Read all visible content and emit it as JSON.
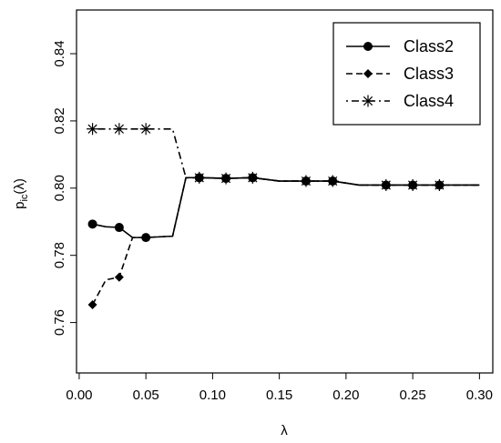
{
  "chart_data": {
    "type": "line",
    "xlabel": "λ",
    "ylabel": {
      "base": "p",
      "sub": "ic",
      "arg": "(λ)"
    },
    "xlim": [
      -0.002,
      0.31
    ],
    "ylim": [
      0.745,
      0.853
    ],
    "x_ticks": [
      0.0,
      0.05,
      0.1,
      0.15,
      0.2,
      0.25,
      0.3
    ],
    "x_tick_labels": [
      "0.00",
      "0.05",
      "0.10",
      "0.15",
      "0.20",
      "0.25",
      "0.30"
    ],
    "y_ticks": [
      0.76,
      0.78,
      0.8,
      0.82,
      0.84
    ],
    "y_tick_labels": [
      "0.76",
      "0.78",
      "0.80",
      "0.82",
      "0.84"
    ],
    "grid": false,
    "legend_position": "top-right",
    "series": [
      {
        "name": "Class2",
        "line_style": "solid",
        "marker": "circle",
        "x": [
          0.01,
          0.02,
          0.03,
          0.04,
          0.05,
          0.07,
          0.08,
          0.09,
          0.11,
          0.13,
          0.15,
          0.17,
          0.19,
          0.21,
          0.23,
          0.25,
          0.27,
          0.3
        ],
        "y": [
          0.7893,
          0.7885,
          0.7883,
          0.7853,
          0.7853,
          0.7857,
          0.8031,
          0.8031,
          0.8029,
          0.8031,
          0.8021,
          0.8021,
          0.8021,
          0.8009,
          0.8009,
          0.8009,
          0.8009,
          0.8009
        ],
        "marker_x": [
          0.01,
          0.03,
          0.05,
          0.09,
          0.11,
          0.13,
          0.17,
          0.19,
          0.23,
          0.25,
          0.27
        ]
      },
      {
        "name": "Class3",
        "line_style": "dashed",
        "marker": "diamond",
        "x": [
          0.01,
          0.02,
          0.03,
          0.04,
          0.05,
          0.07,
          0.08,
          0.09,
          0.11,
          0.13,
          0.15,
          0.17,
          0.19,
          0.21,
          0.23,
          0.25,
          0.27,
          0.3
        ],
        "y": [
          0.7653,
          0.7727,
          0.7735,
          0.7853,
          0.7853,
          0.7857,
          0.8031,
          0.8031,
          0.8029,
          0.8031,
          0.8021,
          0.8021,
          0.8021,
          0.8009,
          0.8009,
          0.8009,
          0.8009,
          0.8009
        ],
        "marker_x": [
          0.01,
          0.03,
          0.09,
          0.11,
          0.13,
          0.17,
          0.19,
          0.23,
          0.25,
          0.27
        ]
      },
      {
        "name": "Class4",
        "line_style": "dotdash",
        "marker": "asterisk",
        "x": [
          0.01,
          0.02,
          0.03,
          0.04,
          0.05,
          0.07,
          0.08,
          0.09,
          0.11,
          0.13,
          0.15,
          0.17,
          0.19,
          0.21,
          0.23,
          0.25,
          0.27,
          0.3
        ],
        "y": [
          0.8176,
          0.8176,
          0.8176,
          0.8176,
          0.8176,
          0.8176,
          0.8031,
          0.8031,
          0.8029,
          0.8031,
          0.8021,
          0.8021,
          0.8021,
          0.8009,
          0.8009,
          0.8009,
          0.8009,
          0.8009
        ],
        "marker_x": [
          0.01,
          0.03,
          0.05,
          0.09,
          0.11,
          0.13,
          0.17,
          0.19,
          0.23,
          0.25,
          0.27
        ]
      }
    ]
  }
}
